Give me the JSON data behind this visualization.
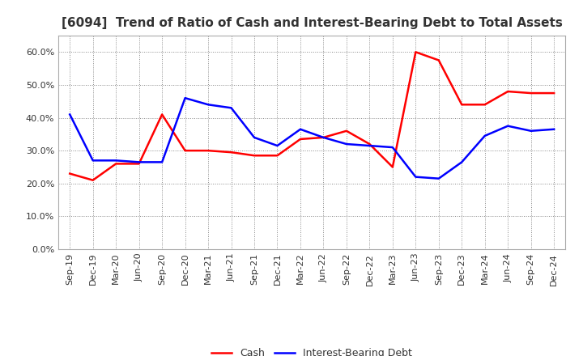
{
  "title": "[6094]  Trend of Ratio of Cash and Interest-Bearing Debt to Total Assets",
  "labels": [
    "Sep-19",
    "Dec-19",
    "Mar-20",
    "Jun-20",
    "Sep-20",
    "Dec-20",
    "Mar-21",
    "Jun-21",
    "Sep-21",
    "Dec-21",
    "Mar-22",
    "Jun-22",
    "Sep-22",
    "Dec-22",
    "Mar-23",
    "Jun-23",
    "Sep-23",
    "Dec-23",
    "Mar-24",
    "Jun-24",
    "Sep-24",
    "Dec-24"
  ],
  "cash": [
    0.23,
    0.21,
    0.26,
    0.26,
    0.41,
    0.3,
    0.3,
    0.295,
    0.285,
    0.285,
    0.335,
    0.34,
    0.36,
    0.32,
    0.25,
    0.6,
    0.575,
    0.44,
    0.44,
    0.48,
    0.475,
    0.475
  ],
  "ibd": [
    0.41,
    0.27,
    0.27,
    0.265,
    0.265,
    0.46,
    0.44,
    0.43,
    0.34,
    0.315,
    0.365,
    0.34,
    0.32,
    0.315,
    0.31,
    0.22,
    0.215,
    0.265,
    0.345,
    0.375,
    0.36,
    0.365
  ],
  "cash_color": "#FF0000",
  "ibd_color": "#0000FF",
  "background_color": "#FFFFFF",
  "plot_bg_color": "#FFFFFF",
  "grid_color": "#888888",
  "ylim": [
    0.0,
    0.65
  ],
  "yticks": [
    0.0,
    0.1,
    0.2,
    0.3,
    0.4,
    0.5,
    0.6
  ],
  "title_fontsize": 11,
  "title_color": "#333333",
  "tick_fontsize": 8,
  "legend_labels": [
    "Cash",
    "Interest-Bearing Debt"
  ],
  "line_width": 1.8
}
